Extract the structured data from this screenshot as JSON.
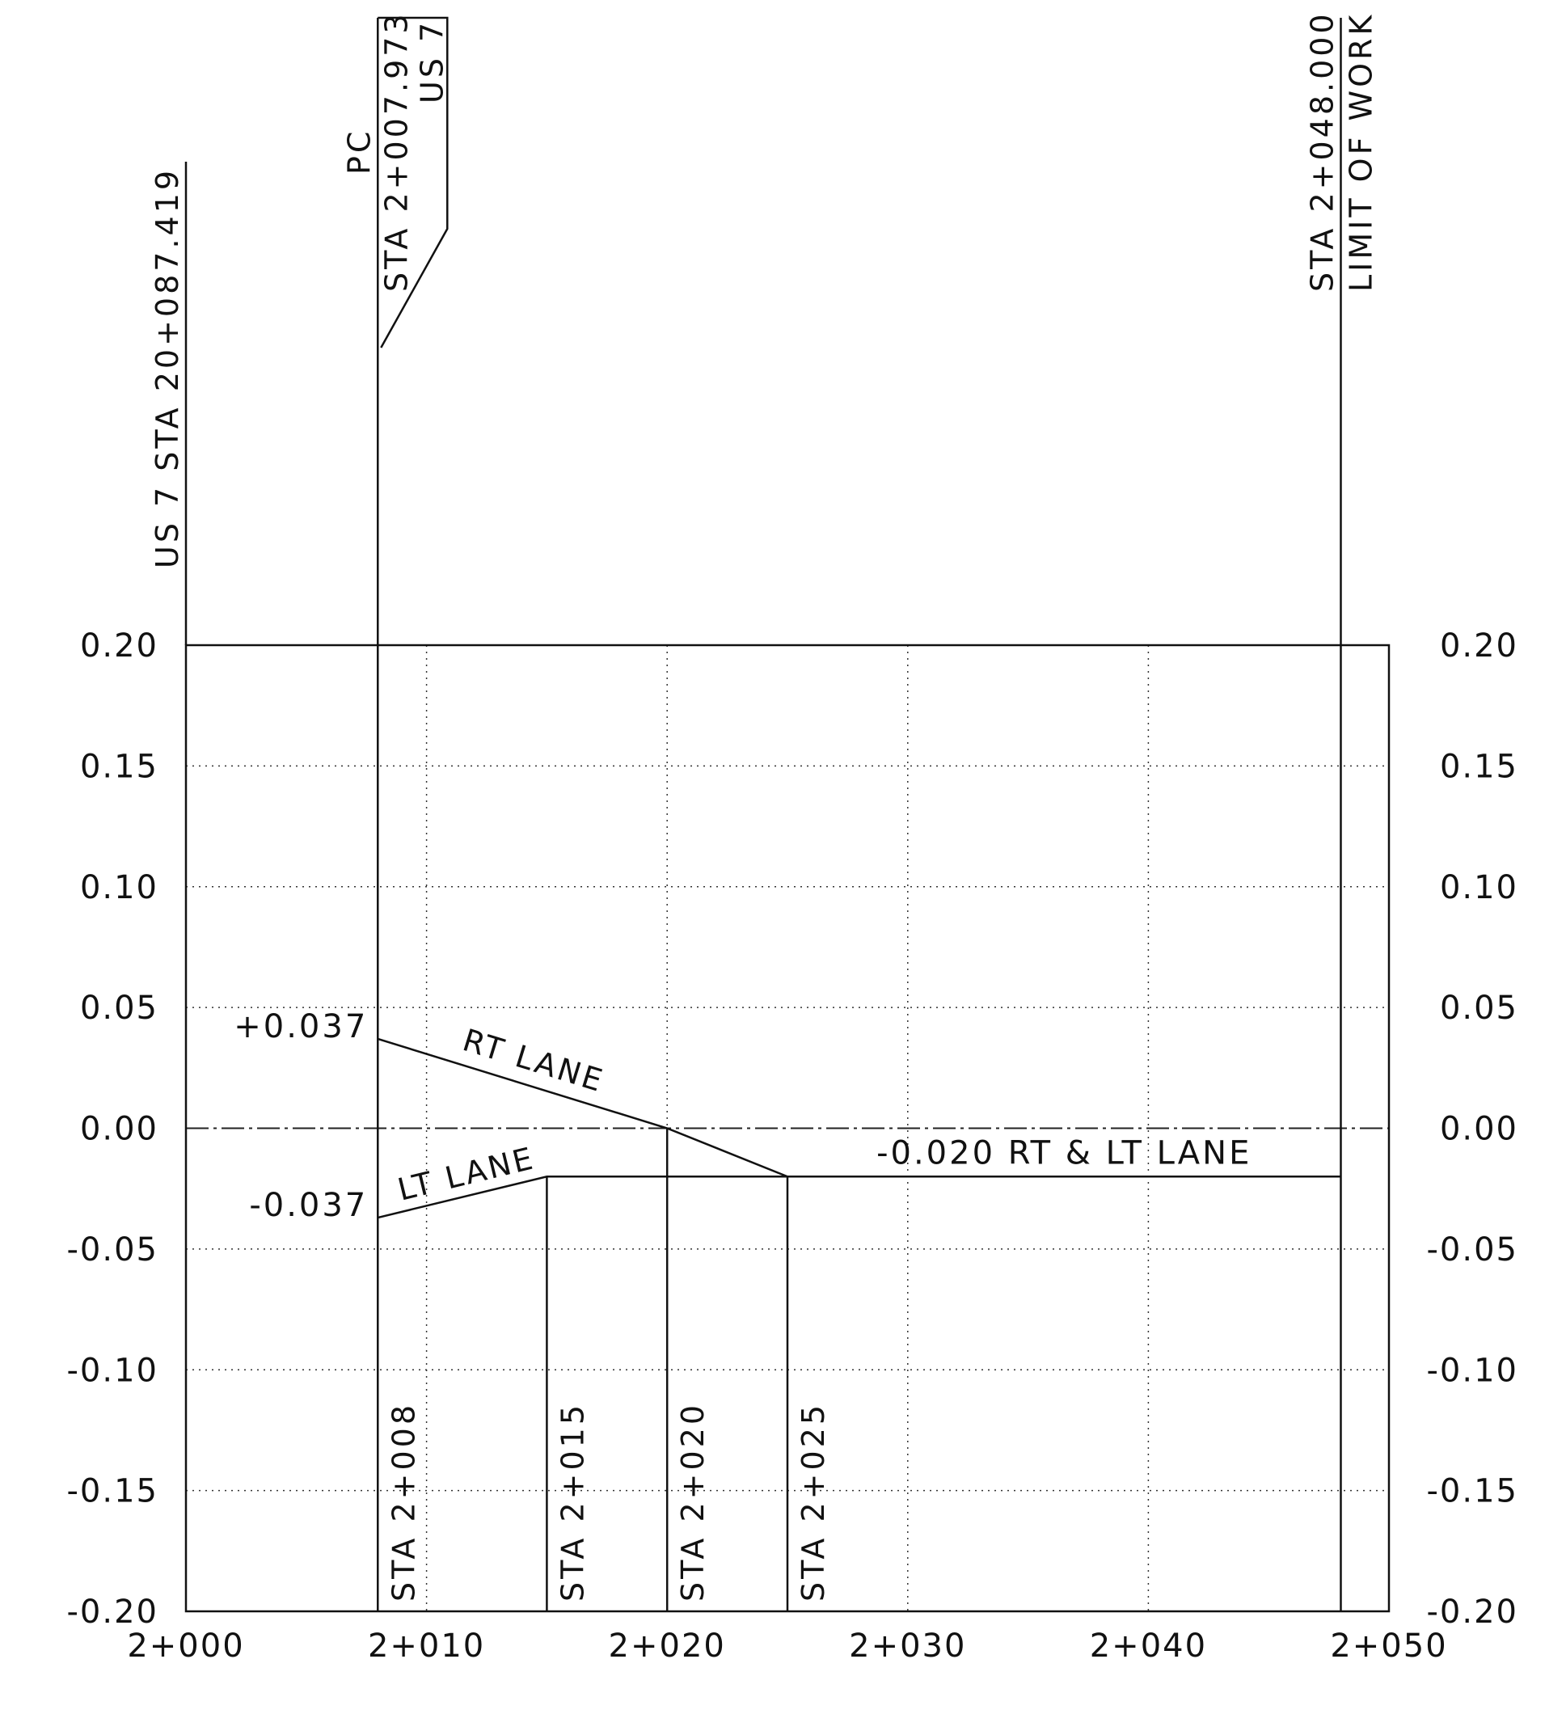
{
  "chart_data": {
    "type": "line",
    "title": "",
    "xlabel": "",
    "ylabel": "",
    "xlim": [
      2000,
      2050
    ],
    "ylim": [
      -0.2,
      0.2
    ],
    "x_ticks": [
      {
        "value": 2000,
        "label": "2+000"
      },
      {
        "value": 2010,
        "label": "2+010"
      },
      {
        "value": 2020,
        "label": "2+020"
      },
      {
        "value": 2030,
        "label": "2+030"
      },
      {
        "value": 2040,
        "label": "2+040"
      },
      {
        "value": 2050,
        "label": "2+050"
      }
    ],
    "y_ticks_left": [
      {
        "value": 0.2,
        "label": "0.20"
      },
      {
        "value": 0.15,
        "label": "0.15"
      },
      {
        "value": 0.1,
        "label": "0.10"
      },
      {
        "value": 0.05,
        "label": "0.05"
      },
      {
        "value": 0.0,
        "label": "0.00"
      },
      {
        "value": -0.05,
        "label": "-0.05"
      },
      {
        "value": -0.1,
        "label": "-0.10"
      },
      {
        "value": -0.15,
        "label": "-0.15"
      },
      {
        "value": -0.2,
        "label": "-0.20"
      }
    ],
    "y_ticks_right": [
      {
        "value": 0.2,
        "label": "0.20"
      },
      {
        "value": 0.15,
        "label": "0.15"
      },
      {
        "value": 0.1,
        "label": "0.10"
      },
      {
        "value": 0.05,
        "label": "0.05"
      },
      {
        "value": 0.0,
        "label": "0.00"
      },
      {
        "value": -0.05,
        "label": "-0.05"
      },
      {
        "value": -0.1,
        "label": "-0.10"
      },
      {
        "value": -0.15,
        "label": "-0.15"
      },
      {
        "value": -0.2,
        "label": "-0.20"
      }
    ],
    "grid": true,
    "series": [
      {
        "name": "RT LANE",
        "x": [
          2007.973,
          2020,
          2025,
          2048
        ],
        "y": [
          0.037,
          0.0,
          -0.02,
          -0.02
        ]
      },
      {
        "name": "LT LANE",
        "x": [
          2007.973,
          2015,
          2025,
          2048
        ],
        "y": [
          -0.037,
          -0.02,
          -0.02,
          -0.02
        ]
      }
    ],
    "annotations": {
      "rt_start": {
        "label": "+0.037",
        "x": 2007.973,
        "y": 0.037
      },
      "lt_start": {
        "label": "-0.037",
        "x": 2007.973,
        "y": -0.037
      },
      "common": {
        "label": "-0.020 RT & LT LANE",
        "x": 2036.5,
        "y": -0.02
      }
    },
    "station_lines": [
      {
        "label": "STA 2+008",
        "x": 2007.973
      },
      {
        "label": "STA 2+015",
        "x": 2015
      },
      {
        "label": "STA 2+020",
        "x": 2020
      },
      {
        "label": "STA 2+025",
        "x": 2025
      }
    ],
    "top_markers": {
      "us7": {
        "label": "US 7 STA 20+087.419",
        "x": 2000
      },
      "pc": {
        "line1": "PC",
        "line2": "STA 2+007.973",
        "line3": "US 7",
        "x": 2007.973
      },
      "limit": {
        "line1": "STA 2+048.000",
        "line2": "LIMIT OF WORK",
        "x": 2048
      }
    }
  }
}
